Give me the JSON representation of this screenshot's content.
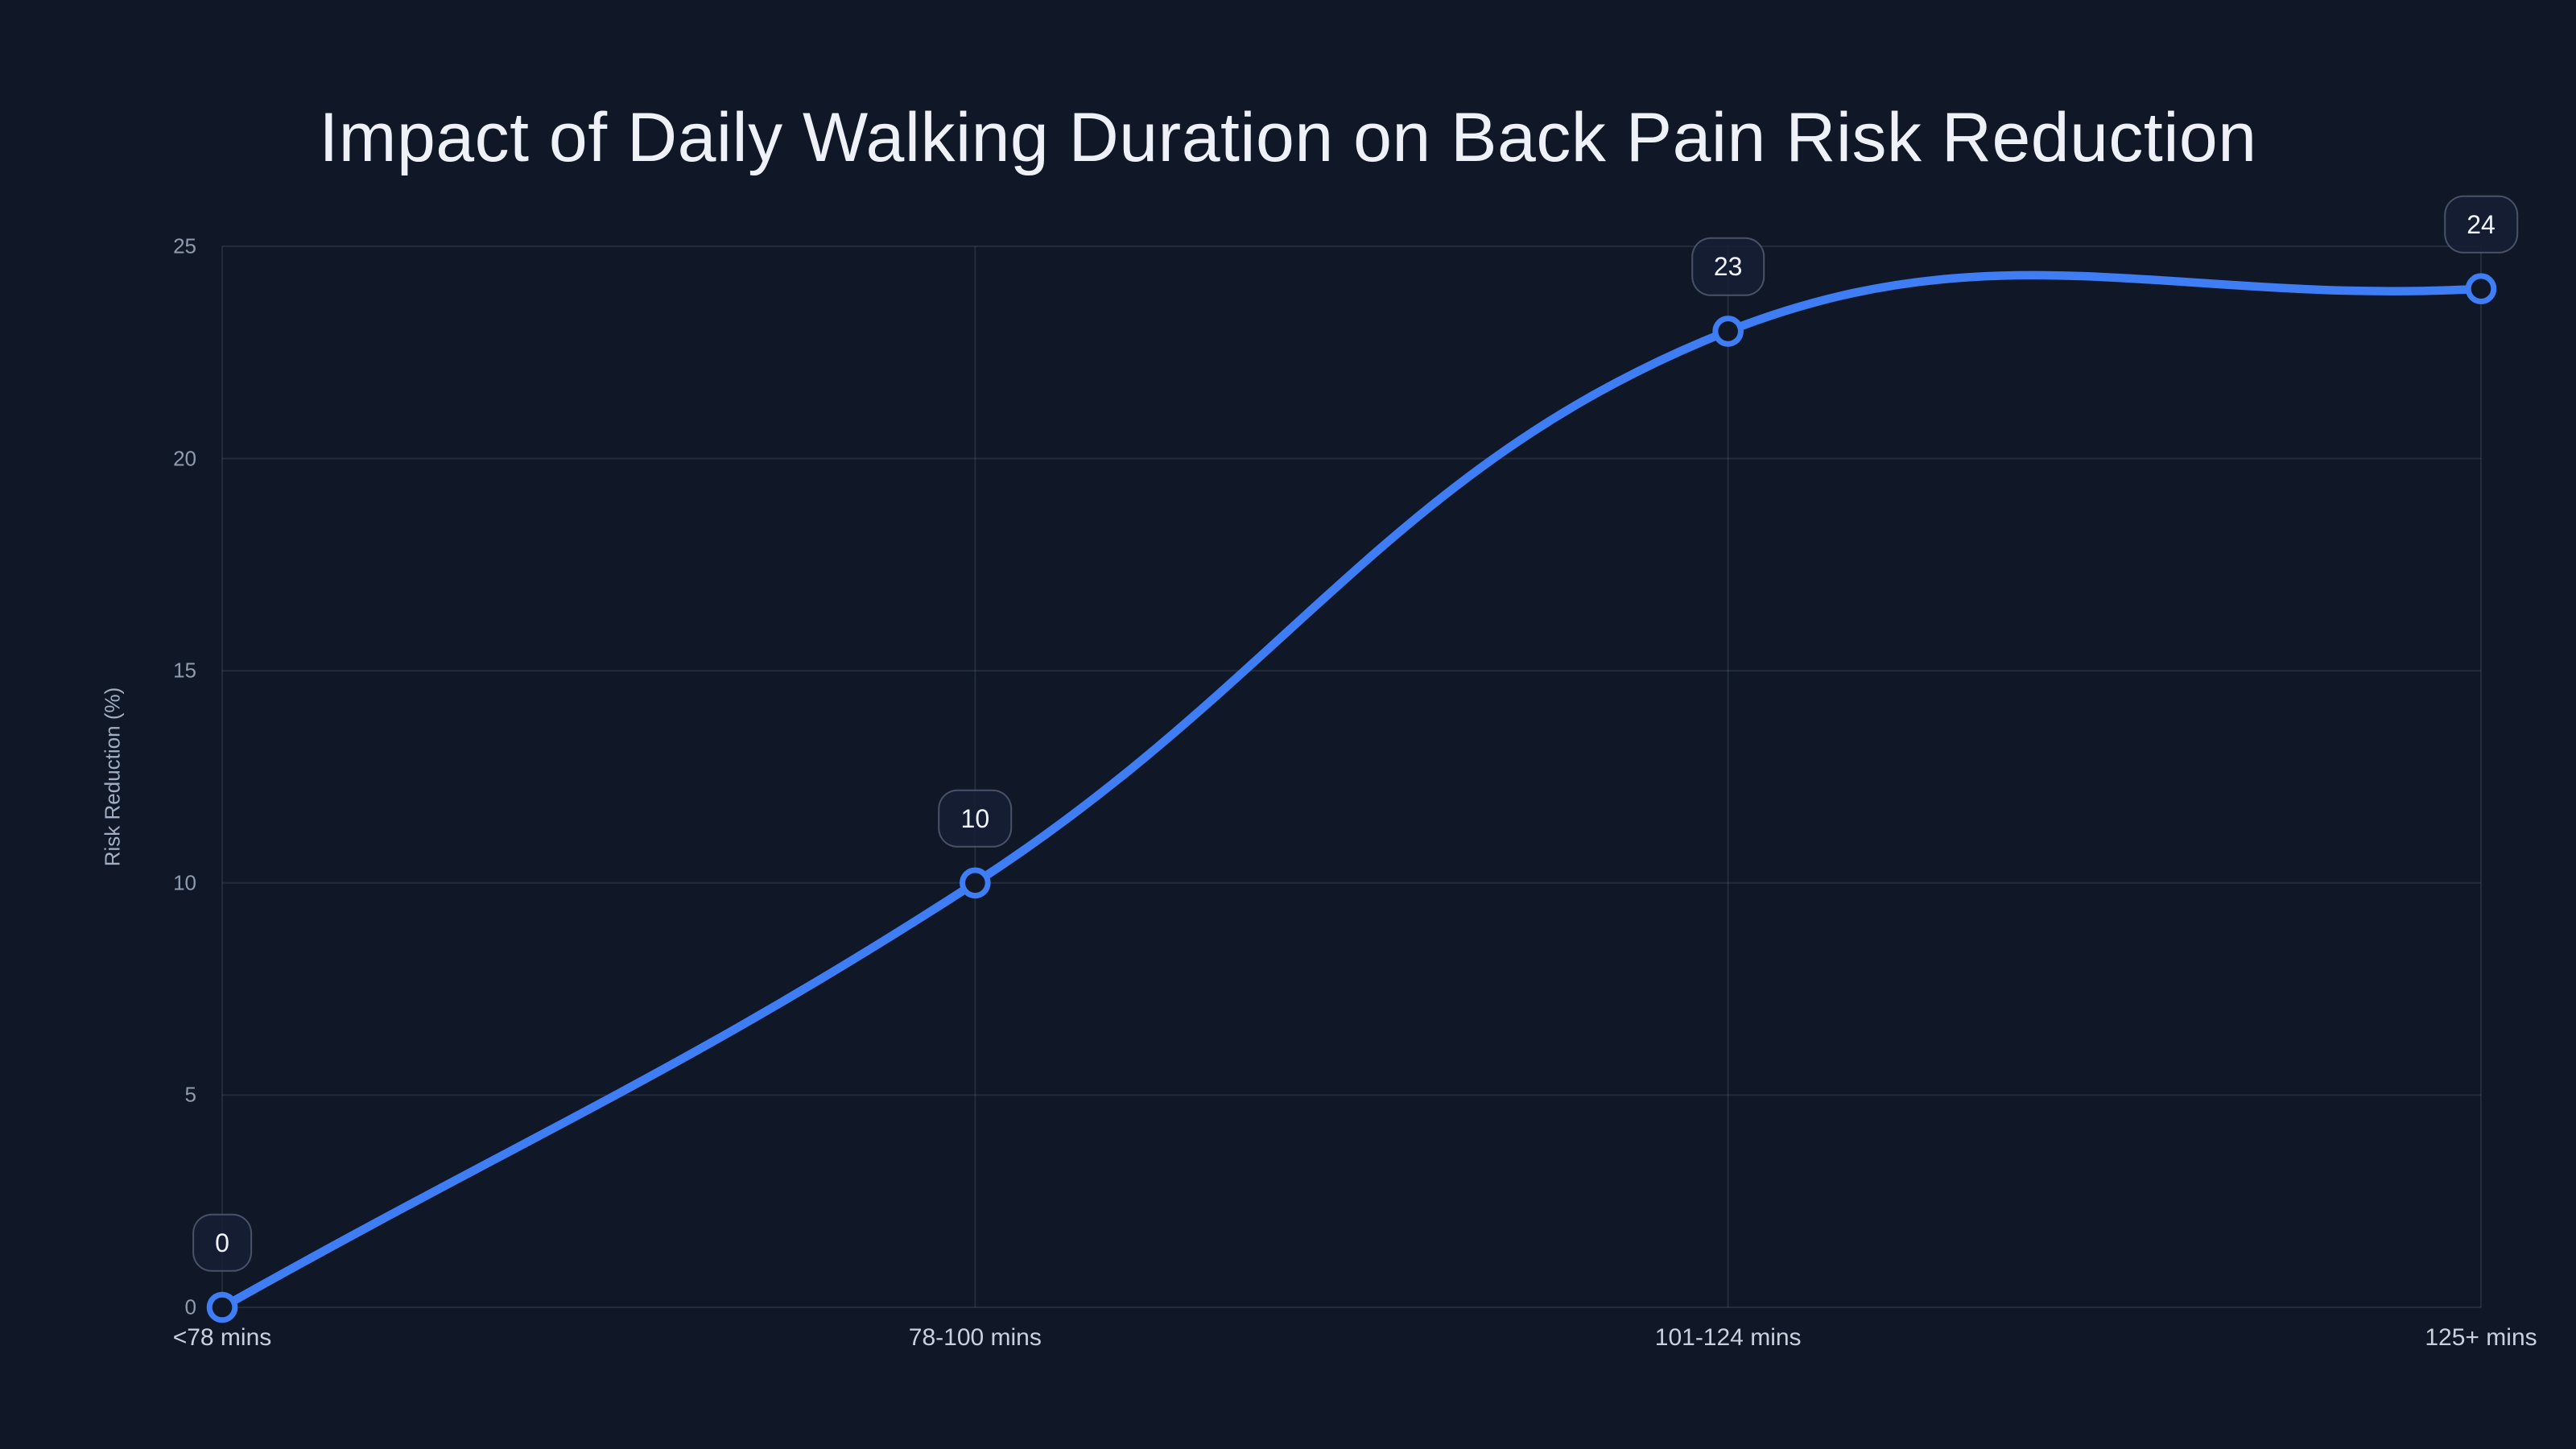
{
  "chart_data": {
    "type": "line",
    "title": "Impact of Daily Walking Duration on Back Pain Risk Reduction",
    "categories": [
      "<78 mins",
      "78-100 mins",
      "101-124 mins",
      "125+ mins"
    ],
    "values": [
      0,
      10,
      23,
      24
    ],
    "point_labels": [
      "0",
      "10",
      "23",
      "24"
    ],
    "xlabel": "",
    "ylabel": "Risk Reduction (%)",
    "ylim": [
      0,
      25
    ],
    "yticks": [
      0,
      5,
      10,
      15,
      20,
      25
    ],
    "grid": true,
    "legend": "none",
    "line_style": "smooth",
    "marker_style": "open-circle",
    "colors": {
      "background": "#101828",
      "line": "#3e7df4",
      "grid": "rgba(148,163,184,0.15)",
      "title_text": "#eef2f8",
      "y_tick_text": "#8f9bae",
      "x_tick_text": "#c9d1dd",
      "axis_title_text": "#a2aec2",
      "badge_background": "rgba(22,31,52,0.85)",
      "badge_border": "rgba(148,163,184,0.4)",
      "badge_text": "#f0f4fa",
      "marker_fill": "#101828"
    }
  }
}
